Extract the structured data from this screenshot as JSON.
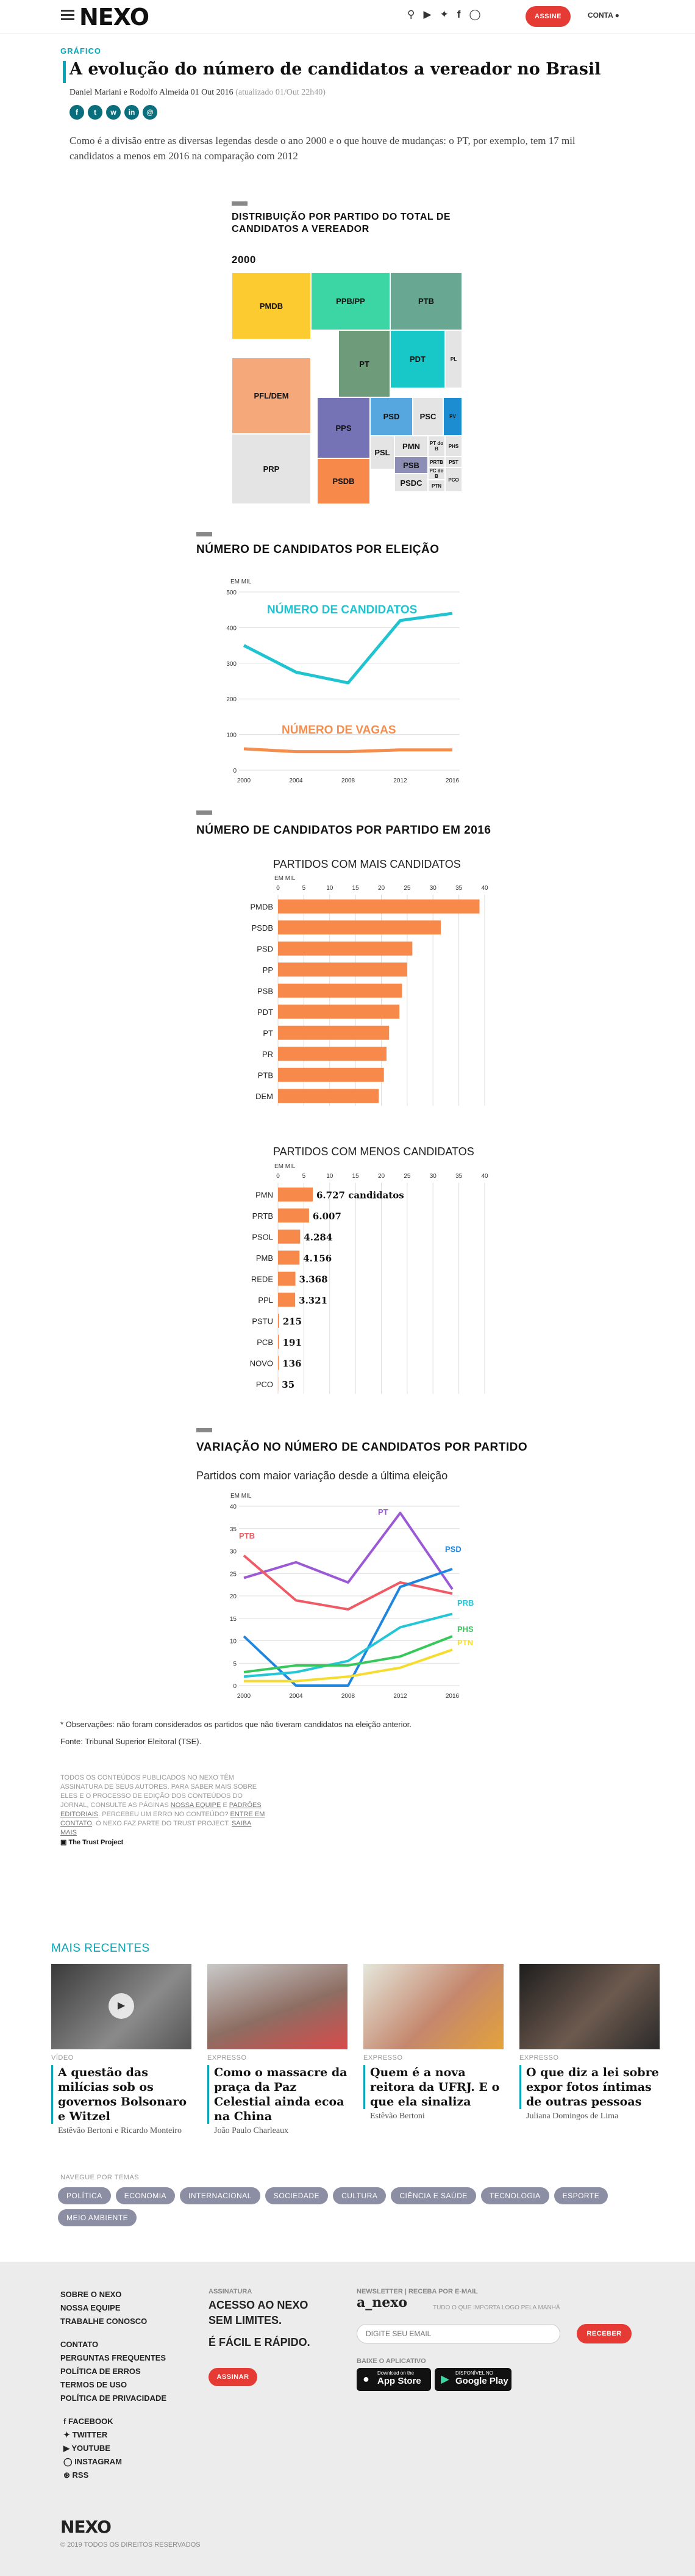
{
  "header": {
    "logo": "NEXO",
    "subscribe": "ASSINE",
    "account": "CONTA"
  },
  "article": {
    "kicker": "GRÁFICO",
    "title": "A evolução do número de candidatos a vereador no Brasil",
    "byline": "Daniel Mariani e Rodolfo Almeida 01 Out 2016",
    "updated": "(atualizado 01/Out 22h40)",
    "dek": "Como é a divisão entre as diversas legendas desde o ano 2000 e o que houve de mudanças: o PT, por exemplo, tem 17 mil candidatos a menos em 2016 na comparação com 2012"
  },
  "treemap": {
    "title_line1": "DISTRIBUIÇÃO POR PARTIDO DO TOTAL DE",
    "title_line2": "CANDIDATOS A VEREADOR",
    "year": "2000",
    "cells": [
      {
        "label": "PMDB",
        "color": "#fccb2f"
      },
      {
        "label": "PPB/PP",
        "color": "#3cd6a5"
      },
      {
        "label": "PTB",
        "color": "#68a893"
      },
      {
        "label": "PT",
        "color": "#6e9b7a"
      },
      {
        "label": "PDT",
        "color": "#18c7c7"
      },
      {
        "label": "PL",
        "color": "#e4e4e4"
      },
      {
        "label": "PFL/DEM",
        "color": "#f5a97a"
      },
      {
        "label": "PPS",
        "color": "#7573b6"
      },
      {
        "label": "PSD",
        "color": "#56a6e0"
      },
      {
        "label": "PSC",
        "color": "#e4e4e4"
      },
      {
        "label": "PV",
        "color": "#1b8dd0"
      },
      {
        "label": "PSL",
        "color": "#e4e4e4"
      },
      {
        "label": "PMN",
        "color": "#e4e4e4"
      },
      {
        "label": "PT do B",
        "color": "#e4e4e4"
      },
      {
        "label": "PHS",
        "color": "#e4e4e4"
      },
      {
        "label": "PRTB",
        "color": "#e4e4e4"
      },
      {
        "label": "PST",
        "color": "#e4e4e4"
      },
      {
        "label": "PRP",
        "color": "#e4e4e4"
      },
      {
        "label": "PSDB",
        "color": "#f7894b"
      },
      {
        "label": "PSB",
        "color": "#8c8eb6"
      },
      {
        "label": "PSDC",
        "color": "#e4e4e4"
      },
      {
        "label": "PC do B",
        "color": "#e4e4e4"
      },
      {
        "label": "PTN",
        "color": "#e4e4e4"
      },
      {
        "label": "PCO",
        "color": "#e4e4e4"
      }
    ]
  },
  "chart_data": [
    {
      "type": "line",
      "title": "NÚMERO DE CANDIDATOS POR ELEIÇÃO",
      "ylabel": "EM MIL",
      "ylim": [
        0,
        500
      ],
      "x": [
        2000,
        2004,
        2008,
        2012,
        2016
      ],
      "series": [
        {
          "name": "NÚMERO DE CANDIDATOS",
          "color": "#1fc4d0",
          "values": [
            350,
            275,
            245,
            420,
            440
          ]
        },
        {
          "name": "NÚMERO DE VAGAS",
          "color": "#f58d4c",
          "values": [
            60,
            52,
            52,
            57,
            57
          ]
        }
      ]
    },
    {
      "type": "bar",
      "title": "NÚMERO DE CANDIDATOS POR PARTIDO EM 2016",
      "subtitle": "PARTIDOS COM MAIS CANDIDATOS",
      "ylabel": "EM MIL",
      "xlim": [
        0,
        40
      ],
      "ticks": [
        0,
        5,
        10,
        15,
        20,
        25,
        30,
        35,
        40
      ],
      "categories": [
        "PMDB",
        "PSDB",
        "PSD",
        "PP",
        "PSB",
        "PDT",
        "PT",
        "PR",
        "PTB",
        "DEM"
      ],
      "values": [
        39,
        31.5,
        26,
        25,
        24,
        23.5,
        21.5,
        21,
        20.5,
        19.5
      ]
    },
    {
      "type": "bar",
      "subtitle": "PARTIDOS COM MENOS CANDIDATOS",
      "ylabel": "EM MIL",
      "xlim": [
        0,
        40
      ],
      "ticks": [
        0,
        5,
        10,
        15,
        20,
        25,
        30,
        35,
        40
      ],
      "categories": [
        "PMN",
        "PRTB",
        "PSOL",
        "PMB",
        "REDE",
        "PPL",
        "PSTU",
        "PCB",
        "NOVO",
        "PCO"
      ],
      "values": [
        6.727,
        6.007,
        4.284,
        4.156,
        3.368,
        3.321,
        0.215,
        0.191,
        0.136,
        0.035
      ],
      "labels": [
        "6.727 candidatos",
        "6.007",
        "4.284",
        "4.156",
        "3.368",
        "3.321",
        "215",
        "191",
        "136",
        "35"
      ]
    },
    {
      "type": "line",
      "title": "VARIAÇÃO NO NÚMERO DE CANDIDATOS POR PARTIDO",
      "subtitle": "Partidos com maior variação desde a última eleição",
      "ylabel": "EM MIL",
      "ylim": [
        0,
        40
      ],
      "x": [
        2000,
        2004,
        2008,
        2012,
        2016
      ],
      "series": [
        {
          "name": "PT",
          "color": "#9b59d6",
          "values": [
            24,
            27.5,
            23,
            38.5,
            21.5
          ]
        },
        {
          "name": "PTB",
          "color": "#ef5a64",
          "values": [
            29,
            19,
            17,
            23,
            20.5
          ]
        },
        {
          "name": "PSD",
          "color": "#1f86e0",
          "values": [
            11,
            0,
            0,
            22,
            26
          ]
        },
        {
          "name": "PRB",
          "color": "#23c6d6",
          "values": [
            2,
            3,
            5.5,
            13,
            16
          ]
        },
        {
          "name": "PHS",
          "color": "#37c85a",
          "values": [
            3,
            4.5,
            4.5,
            6.5,
            11
          ]
        },
        {
          "name": "PTN",
          "color": "#f5dc2f",
          "values": [
            1,
            1,
            2,
            4,
            8
          ]
        }
      ]
    }
  ],
  "notes": {
    "obs": "* Observações: não foram considerados os partidos que não tiveram candidatos na eleição anterior.",
    "source": "Fonte: Tribunal Superior Eleitoral (TSE).",
    "disclaimer": "Todos os conteúdos publicados no Nexo têm assinatura de seus autores. Para saber mais sobre eles e o processo de edição dos conteúdos do jornal, consulte as páginas",
    "link1": "Nossa equipe",
    "and": " e ",
    "link2": "Padrões editoriais",
    "mid": ". Percebeu um erro no conteúdo? ",
    "link3": "Entre em contato",
    "end": ". O Nexo faz parte do Trust Project. ",
    "link4": "Saiba mais",
    "trust": "The Trust Project"
  },
  "recent": {
    "title": "MAIS RECENTES",
    "items": [
      {
        "kind": "VÍDEO",
        "title": "A questão das milícias sob os governos Bolsonaro e Witzel",
        "author": "Estêvão Bertoni e Ricardo Monteiro"
      },
      {
        "kind": "EXPRESSO",
        "title": "Como o massacre da praça da Paz Celestial ainda ecoa na China",
        "author": "João Paulo Charleaux"
      },
      {
        "kind": "EXPRESSO",
        "title": "Quem é a nova reitora da UFRJ. E o que ela sinaliza",
        "author": "Estêvão Bertoni"
      },
      {
        "kind": "EXPRESSO",
        "title": "O que diz a lei sobre expor fotos íntimas de outras pessoas",
        "author": "Juliana Domingos de Lima"
      }
    ]
  },
  "nav": {
    "label": "NAVEGUE POR TEMAS",
    "tags": [
      "POLÍTICA",
      "ECONOMIA",
      "INTERNACIONAL",
      "SOCIEDADE",
      "CULTURA",
      "CIÊNCIA E SAÚDE",
      "TECNOLOGIA",
      "ESPORTE",
      "MEIO AMBIENTE"
    ]
  },
  "footer": {
    "links1": [
      "SOBRE O NEXO",
      "NOSSA EQUIPE",
      "TRABALHE CONOSCO"
    ],
    "links2": [
      "CONTATO",
      "PERGUNTAS FREQUENTES",
      "POLÍTICA DE ERROS",
      "TERMOS DE USO",
      "POLÍTICA DE PRIVACIDADE"
    ],
    "social": [
      "FACEBOOK",
      "TWITTER",
      "YOUTUBE",
      "INSTAGRAM",
      "RSS"
    ],
    "sub_label": "ASSINATURA",
    "sub_l1": "ACESSO AO NEXO",
    "sub_l2": "SEM LIMITES.",
    "sub_l3": "É FÁCIL E RÁPIDO.",
    "sub_btn": "ASSINAR",
    "news_label": "NEWSLETTER | RECEBA POR E-MAIL",
    "news_name": "a_nexo",
    "news_tag": "TUDO O QUE IMPORTA LOGO PELA MANHÃ",
    "news_placeholder": "DIGITE SEU EMAIL",
    "news_btn": "RECEBER",
    "app_label": "BAIXE O APLICATIVO",
    "appstore": "App Store",
    "appstore_small": "Download on the",
    "gplay": "Google Play",
    "gplay_small": "DISPONÍVEL NO",
    "logo": "NEXO",
    "copyright": "© 2019 TODOS OS DIREITOS RESERVADOS"
  }
}
